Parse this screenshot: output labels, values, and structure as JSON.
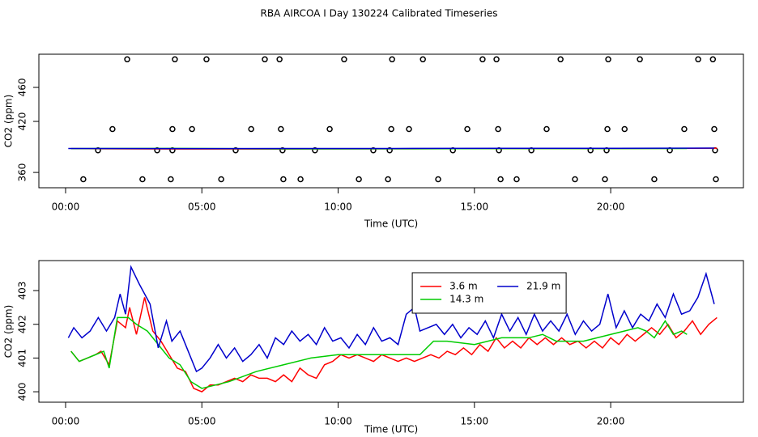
{
  "title": "RBA AIRCOA I  Day 130224  Calibrated Timeseries",
  "chart_data": [
    {
      "type": "scatter",
      "x_label": "Time (UTC)",
      "y_label": "CO2 (ppm)",
      "xlim": [
        -0.98,
        24.87
      ],
      "ylim": [
        342,
        499
      ],
      "xticks": [
        {
          "value": 0,
          "label": "00:00"
        },
        {
          "value": 5,
          "label": "05:00"
        },
        {
          "value": 10,
          "label": "10:00"
        },
        {
          "value": 15,
          "label": "15:00"
        },
        {
          "value": 20,
          "label": "20:00"
        }
      ],
      "yticks": [
        360,
        420,
        460
      ],
      "series": [
        {
          "mode": "points",
          "color": "#000000",
          "x": [
            2.26,
            4.01,
            5.17,
            7.31,
            7.85,
            10.22,
            11.98,
            13.11,
            15.3,
            15.81,
            18.16,
            19.91,
            21.07,
            23.21,
            23.75
          ],
          "values": [
            493,
            493,
            493,
            493,
            493,
            493,
            493,
            493,
            493,
            493,
            493,
            493,
            493,
            493,
            493
          ]
        },
        {
          "mode": "points",
          "color": "#000000",
          "x": [
            1.72,
            3.92,
            4.64,
            6.81,
            7.9,
            9.69,
            11.95,
            12.6,
            14.74,
            15.87,
            17.65,
            19.88,
            20.51,
            22.7,
            23.8
          ],
          "values": [
            411,
            411,
            411,
            411,
            411,
            411,
            411,
            411,
            411,
            411,
            411,
            411,
            411,
            411,
            411
          ]
        },
        {
          "mode": "points",
          "color": "#000000",
          "x": [
            1.19,
            3.36,
            3.92,
            6.24,
            7.96,
            9.15,
            11.29,
            11.89,
            14.21,
            15.9,
            17.09,
            19.26,
            19.85,
            22.17,
            23.83
          ],
          "values": [
            386,
            386,
            386,
            386,
            386,
            386,
            386,
            386,
            386,
            386,
            386,
            386,
            386,
            386,
            386
          ]
        },
        {
          "mode": "points",
          "color": "#000000",
          "x": [
            0.65,
            2.82,
            3.86,
            5.71,
            7.99,
            8.62,
            10.76,
            11.83,
            13.67,
            15.96,
            16.55,
            18.69,
            19.79,
            21.6,
            23.86
          ],
          "values": [
            352,
            352,
            352,
            352,
            352,
            352,
            352,
            352,
            352,
            352,
            352,
            352,
            352,
            352,
            352
          ]
        },
        {
          "mode": "line",
          "color": "#ff0000",
          "x": [
            0.2,
            4.0,
            8.0,
            12.0,
            16.0,
            20.0,
            23.9
          ],
          "values": [
            388,
            387.5,
            387.6,
            387.8,
            388,
            388,
            388.5
          ]
        },
        {
          "mode": "line",
          "color": "#00cc00",
          "x": [
            0.2,
            4.0,
            8.0,
            12.0,
            16.0,
            20.0,
            22.8
          ],
          "values": [
            388,
            388.3,
            387.7,
            387.8,
            388,
            388,
            388.2
          ]
        },
        {
          "mode": "line",
          "color": "#0000cc",
          "x": [
            0.1,
            4.0,
            8.0,
            12.0,
            16.0,
            20.0,
            23.8
          ],
          "values": [
            388.2,
            388,
            388.2,
            388.2,
            388.4,
            388.4,
            388.6
          ]
        }
      ]
    },
    {
      "type": "line",
      "x_label": "Time (UTC)",
      "y_label": "CO2 (ppm)",
      "xlim": [
        -0.98,
        24.87
      ],
      "ylim": [
        399.69,
        403.89
      ],
      "xticks": [
        {
          "value": 0,
          "label": "00:00"
        },
        {
          "value": 5,
          "label": "05:00"
        },
        {
          "value": 10,
          "label": "10:00"
        },
        {
          "value": 15,
          "label": "15:00"
        },
        {
          "value": 20,
          "label": "20:00"
        }
      ],
      "yticks": [
        400,
        401,
        402,
        403
      ],
      "legend": "top",
      "legend_columns": 2,
      "series": [
        {
          "name": "3.6 m",
          "color": "#ff0000",
          "x": [
            0.2,
            0.5,
            0.8,
            1.1,
            1.3,
            1.6,
            1.9,
            2.2,
            2.35,
            2.6,
            2.9,
            3.2,
            3.5,
            3.8,
            4.1,
            4.4,
            4.7,
            5.0,
            5.3,
            5.6,
            5.9,
            6.2,
            6.5,
            6.8,
            7.1,
            7.4,
            7.7,
            8.0,
            8.3,
            8.6,
            8.9,
            9.2,
            9.5,
            9.8,
            10.1,
            10.4,
            10.7,
            11.0,
            11.3,
            11.6,
            11.9,
            12.2,
            12.5,
            12.8,
            13.1,
            13.4,
            13.7,
            14.0,
            14.3,
            14.6,
            14.9,
            15.2,
            15.5,
            15.8,
            16.1,
            16.4,
            16.7,
            17.0,
            17.3,
            17.6,
            17.9,
            18.2,
            18.5,
            18.8,
            19.1,
            19.4,
            19.7,
            20.0,
            20.3,
            20.6,
            20.9,
            21.2,
            21.5,
            21.8,
            22.1,
            22.4,
            22.7,
            23.0,
            23.3,
            23.6,
            23.9
          ],
          "values": [
            401.2,
            400.9,
            401.0,
            401.1,
            401.2,
            400.8,
            402.1,
            401.9,
            402.5,
            401.7,
            402.8,
            401.8,
            401.5,
            401.1,
            400.7,
            400.6,
            400.1,
            400.0,
            400.2,
            400.2,
            400.3,
            400.4,
            400.3,
            400.5,
            400.4,
            400.4,
            400.3,
            400.5,
            400.3,
            400.7,
            400.5,
            400.4,
            400.8,
            400.9,
            401.1,
            401.0,
            401.1,
            401.0,
            400.9,
            401.1,
            401.0,
            400.9,
            401.0,
            400.9,
            401.0,
            401.1,
            401.0,
            401.2,
            401.1,
            401.3,
            401.1,
            401.4,
            401.2,
            401.6,
            401.3,
            401.5,
            401.3,
            401.6,
            401.4,
            401.6,
            401.4,
            401.6,
            401.4,
            401.5,
            401.3,
            401.5,
            401.3,
            401.6,
            401.4,
            401.7,
            401.5,
            401.7,
            401.9,
            401.7,
            402.0,
            401.6,
            401.8,
            402.1,
            401.7,
            402.0,
            402.2
          ]
        },
        {
          "name": "14.3 m",
          "color": "#00cc00",
          "x": [
            0.2,
            0.5,
            0.8,
            1.1,
            1.4,
            1.6,
            1.9,
            2.3,
            2.6,
            3.0,
            3.4,
            3.8,
            4.2,
            4.6,
            5.0,
            6.0,
            7.0,
            8.0,
            9.0,
            10.0,
            11.0,
            12.0,
            13.0,
            13.5,
            14.0,
            15.0,
            16.0,
            17.0,
            17.5,
            18.0,
            19.0,
            20.0,
            21.0,
            21.3,
            21.6,
            22.0,
            22.3,
            22.6,
            22.8
          ],
          "values": [
            401.2,
            400.9,
            401.0,
            401.1,
            401.2,
            400.7,
            402.2,
            402.2,
            402.0,
            401.8,
            401.4,
            401.0,
            400.8,
            400.3,
            400.1,
            400.3,
            400.6,
            400.8,
            401.0,
            401.1,
            401.1,
            401.1,
            401.1,
            401.5,
            401.5,
            401.4,
            401.6,
            401.6,
            401.7,
            401.5,
            401.5,
            401.7,
            401.9,
            401.8,
            401.6,
            402.1,
            401.7,
            401.8,
            401.7
          ]
        },
        {
          "name": "21.9 m",
          "color": "#0000cc",
          "x": [
            0.1,
            0.3,
            0.6,
            0.9,
            1.2,
            1.5,
            1.8,
            2.0,
            2.2,
            2.4,
            2.7,
            2.9,
            3.1,
            3.4,
            3.7,
            3.9,
            4.2,
            4.5,
            4.8,
            5.0,
            5.3,
            5.6,
            5.9,
            6.2,
            6.5,
            6.8,
            7.1,
            7.4,
            7.7,
            8.0,
            8.3,
            8.6,
            8.9,
            9.2,
            9.5,
            9.8,
            10.1,
            10.4,
            10.7,
            11.0,
            11.3,
            11.6,
            11.9,
            12.2,
            12.5,
            12.8,
            13.0,
            13.3,
            13.6,
            13.9,
            14.2,
            14.5,
            14.8,
            15.1,
            15.4,
            15.7,
            16.0,
            16.3,
            16.6,
            16.9,
            17.2,
            17.5,
            17.8,
            18.1,
            18.4,
            18.7,
            19.0,
            19.3,
            19.6,
            19.9,
            20.2,
            20.5,
            20.8,
            21.1,
            21.4,
            21.7,
            22.0,
            22.3,
            22.6,
            22.9,
            23.2,
            23.5,
            23.8
          ],
          "values": [
            401.6,
            401.9,
            401.6,
            401.8,
            402.2,
            401.8,
            402.2,
            402.9,
            402.3,
            403.7,
            403.2,
            402.9,
            402.6,
            401.3,
            402.1,
            401.5,
            401.8,
            401.2,
            400.6,
            400.7,
            401.0,
            401.4,
            401.0,
            401.3,
            400.9,
            401.1,
            401.4,
            401.0,
            401.6,
            401.4,
            401.8,
            401.5,
            401.7,
            401.4,
            401.9,
            401.5,
            401.6,
            401.3,
            401.7,
            401.4,
            401.9,
            401.5,
            401.6,
            401.4,
            402.3,
            402.5,
            401.8,
            401.9,
            402.0,
            401.7,
            402.0,
            401.6,
            401.9,
            401.7,
            402.1,
            401.6,
            402.3,
            401.8,
            402.2,
            401.7,
            402.3,
            401.8,
            402.1,
            401.8,
            402.3,
            401.7,
            402.1,
            401.8,
            402.0,
            402.9,
            401.9,
            402.4,
            401.9,
            402.3,
            402.1,
            402.6,
            402.2,
            402.9,
            402.3,
            402.4,
            402.8,
            403.5,
            402.6
          ]
        }
      ]
    }
  ]
}
